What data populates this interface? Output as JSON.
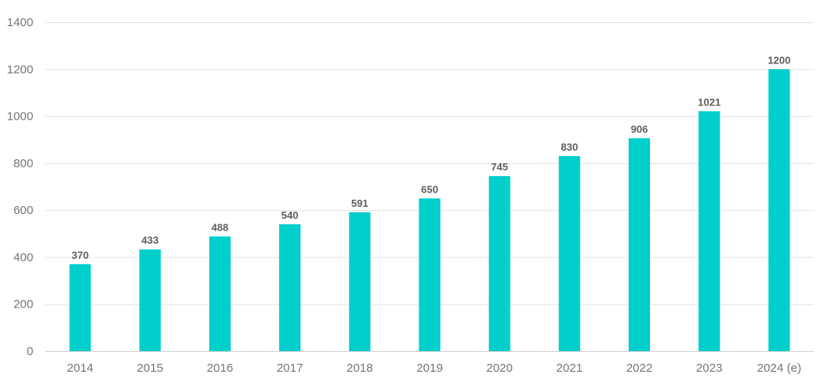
{
  "colors": {
    "bar": "#00CFCB",
    "grid": "#E3E3E3",
    "tick_text": "#757575",
    "label_text": "#5F5F5F"
  },
  "chart_data": {
    "type": "bar",
    "title": "",
    "xlabel": "",
    "ylabel": "",
    "categories": [
      "2014",
      "2015",
      "2016",
      "2017",
      "2018",
      "2019",
      "2020",
      "2021",
      "2022",
      "2023",
      "2024 (e)"
    ],
    "values": [
      370,
      433,
      488,
      540,
      591,
      650,
      745,
      830,
      906,
      1021,
      1200
    ],
    "ylim": [
      0,
      1400
    ],
    "yticks": [
      0,
      200,
      400,
      600,
      800,
      1000,
      1200,
      1400
    ],
    "grid": true,
    "legend": "none",
    "data_labels": true
  }
}
